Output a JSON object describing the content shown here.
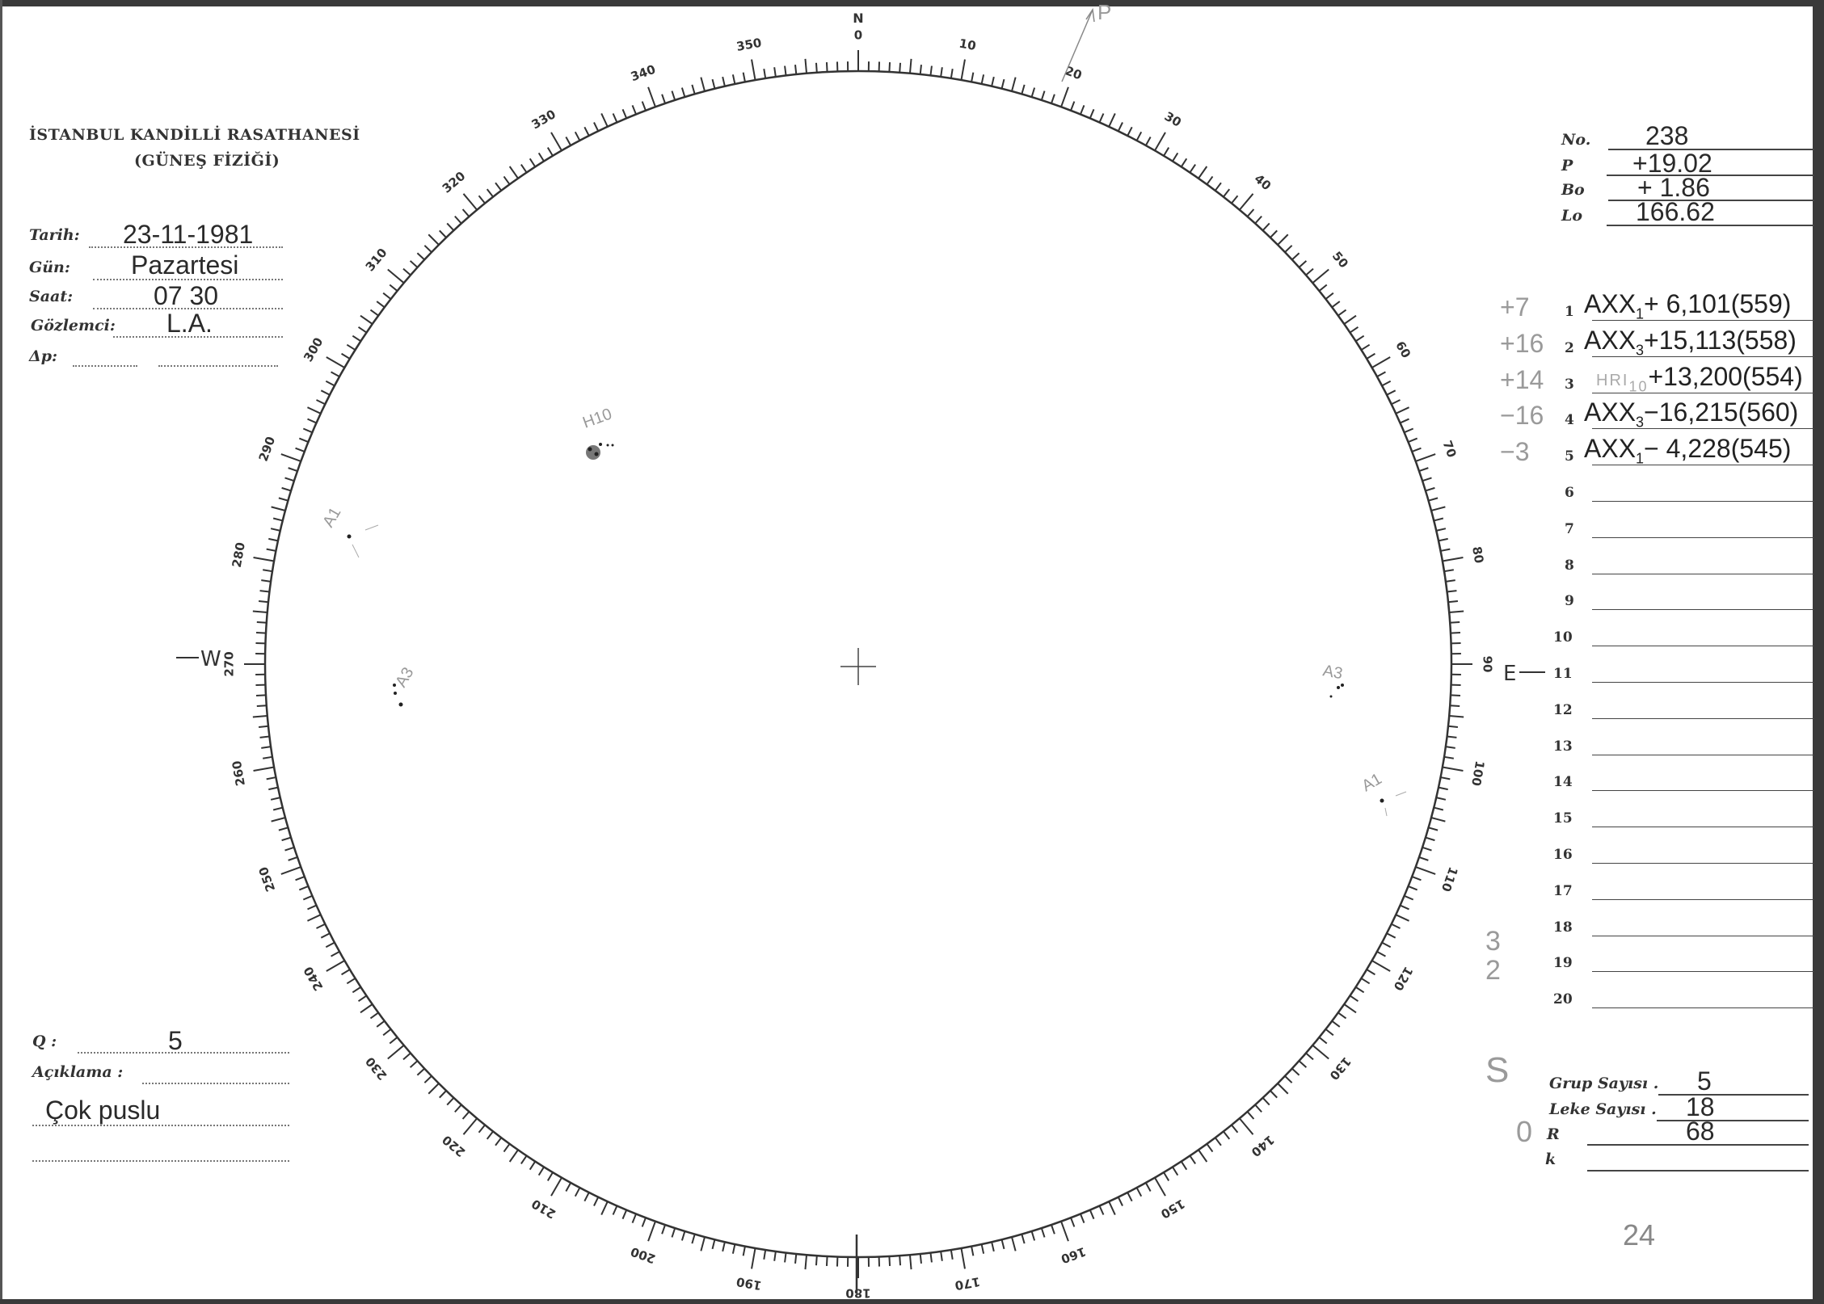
{
  "header": {
    "institution": "İSTANBUL KANDİLLİ RASATHANESİ",
    "department": "(GÜNEŞ FİZİĞİ)"
  },
  "observation": {
    "fields": [
      {
        "label": "Tarih:",
        "value": "23-11-1981"
      },
      {
        "label": "Gün:",
        "value": "Pazartesi"
      },
      {
        "label": "Saat:",
        "value": "07 30"
      },
      {
        "label": "Gözlemci:",
        "value": "L.A."
      },
      {
        "label": "Δp:",
        "value": ""
      }
    ]
  },
  "ephemeris": [
    {
      "label": "No.",
      "value": "238"
    },
    {
      "label": "P",
      "value": "+19.02"
    },
    {
      "label": "Bo",
      "value": "+ 1.86"
    },
    {
      "label": "Lo",
      "value": "166.62"
    }
  ],
  "groups": [
    {
      "note": "+7",
      "num": "1",
      "cls": "AXX",
      "sub": "1",
      "value": "+ 6,101(559)"
    },
    {
      "note": "+16",
      "num": "2",
      "cls": "AXX",
      "sub": "3",
      "value": "+15,113(558)"
    },
    {
      "note": "+14",
      "num": "3",
      "cls": "HRI",
      "sub": "10",
      "value": "+13,200(554)"
    },
    {
      "note": "−16",
      "num": "4",
      "cls": "AXX",
      "sub": "3",
      "value": "−16,215(560)"
    },
    {
      "note": "−3",
      "num": "5",
      "cls": "AXX",
      "sub": "1",
      "value": "− 4,228(545)"
    },
    {
      "num": "6"
    },
    {
      "num": "7"
    },
    {
      "num": "8"
    },
    {
      "num": "9"
    },
    {
      "num": "10"
    },
    {
      "num": "11"
    },
    {
      "num": "12"
    },
    {
      "num": "13"
    },
    {
      "num": "14"
    },
    {
      "num": "15"
    },
    {
      "num": "16"
    },
    {
      "num": "17"
    },
    {
      "num": "18"
    },
    {
      "num": "19"
    },
    {
      "num": "20"
    }
  ],
  "side_notes": {
    "n1": "3",
    "n2": "2",
    "n3": "S",
    "n4": "0",
    "page": "24"
  },
  "summary": [
    {
      "label": "Grup Sayısı .",
      "value": "5"
    },
    {
      "label": "Leke Sayısı .",
      "value": "18"
    },
    {
      "label": "R",
      "value": "68"
    },
    {
      "label": "k",
      "value": ""
    }
  ],
  "remarks": {
    "q_label": "Q :",
    "q_value": "5",
    "desc_label": "Açıklama :",
    "desc_value": "Çok puslu"
  },
  "disk": {
    "scale_labels": [
      "0",
      "10",
      "20",
      "30",
      "40",
      "50",
      "60",
      "70",
      "80",
      "90",
      "100",
      "110",
      "120",
      "130",
      "140",
      "150",
      "160",
      "170",
      "180",
      "190",
      "200",
      "210",
      "220",
      "230",
      "240",
      "250",
      "260",
      "270",
      "280",
      "290",
      "300",
      "310",
      "320",
      "330",
      "340",
      "350"
    ],
    "cardinals": {
      "north": "N",
      "east": "E",
      "west": "W"
    },
    "pole_label": "P",
    "spots": [
      {
        "label": "H10"
      },
      {
        "label": "A1"
      },
      {
        "label": "A3"
      },
      {
        "label": "A3"
      },
      {
        "label": "A1"
      }
    ]
  }
}
